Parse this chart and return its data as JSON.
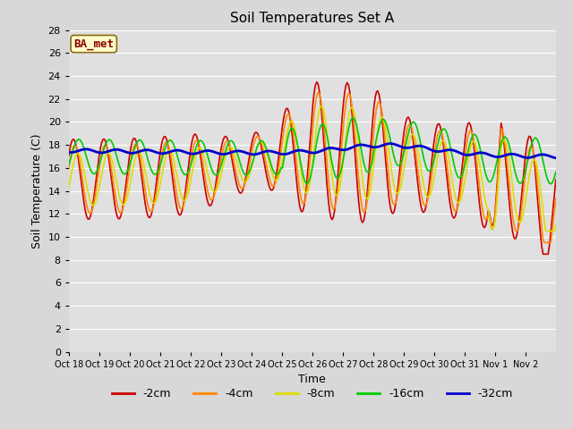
{
  "title": "Soil Temperatures Set A",
  "xlabel": "Time",
  "ylabel": "Soil Temperature (C)",
  "annotation": "BA_met",
  "ylim": [
    0,
    28
  ],
  "yticks": [
    0,
    2,
    4,
    6,
    8,
    10,
    12,
    14,
    16,
    18,
    20,
    22,
    24,
    26,
    28
  ],
  "x_labels": [
    "Oct 18",
    "Oct 19",
    "Oct 20",
    "Oct 21",
    "Oct 22",
    "Oct 23",
    "Oct 24",
    "Oct 25",
    "Oct 26",
    "Oct 27",
    "Oct 28",
    "Oct 29",
    "Oct 30",
    "Oct 31",
    "Nov 1",
    "Nov 2"
  ],
  "series": {
    "-2cm": {
      "color": "#cc0000",
      "lw": 1.2
    },
    "-4cm": {
      "color": "#ff8800",
      "lw": 1.2
    },
    "-8cm": {
      "color": "#dddd00",
      "lw": 1.2
    },
    "-16cm": {
      "color": "#00cc00",
      "lw": 1.2
    },
    "-32cm": {
      "color": "#0000cc",
      "lw": 2.0
    }
  },
  "bg_color": "#e0e0e0",
  "grid_color": "#ffffff",
  "fig_bg": "#d8d8d8",
  "legend_order": [
    "-2cm",
    "-4cm",
    "-8cm",
    "-16cm",
    "-32cm"
  ]
}
